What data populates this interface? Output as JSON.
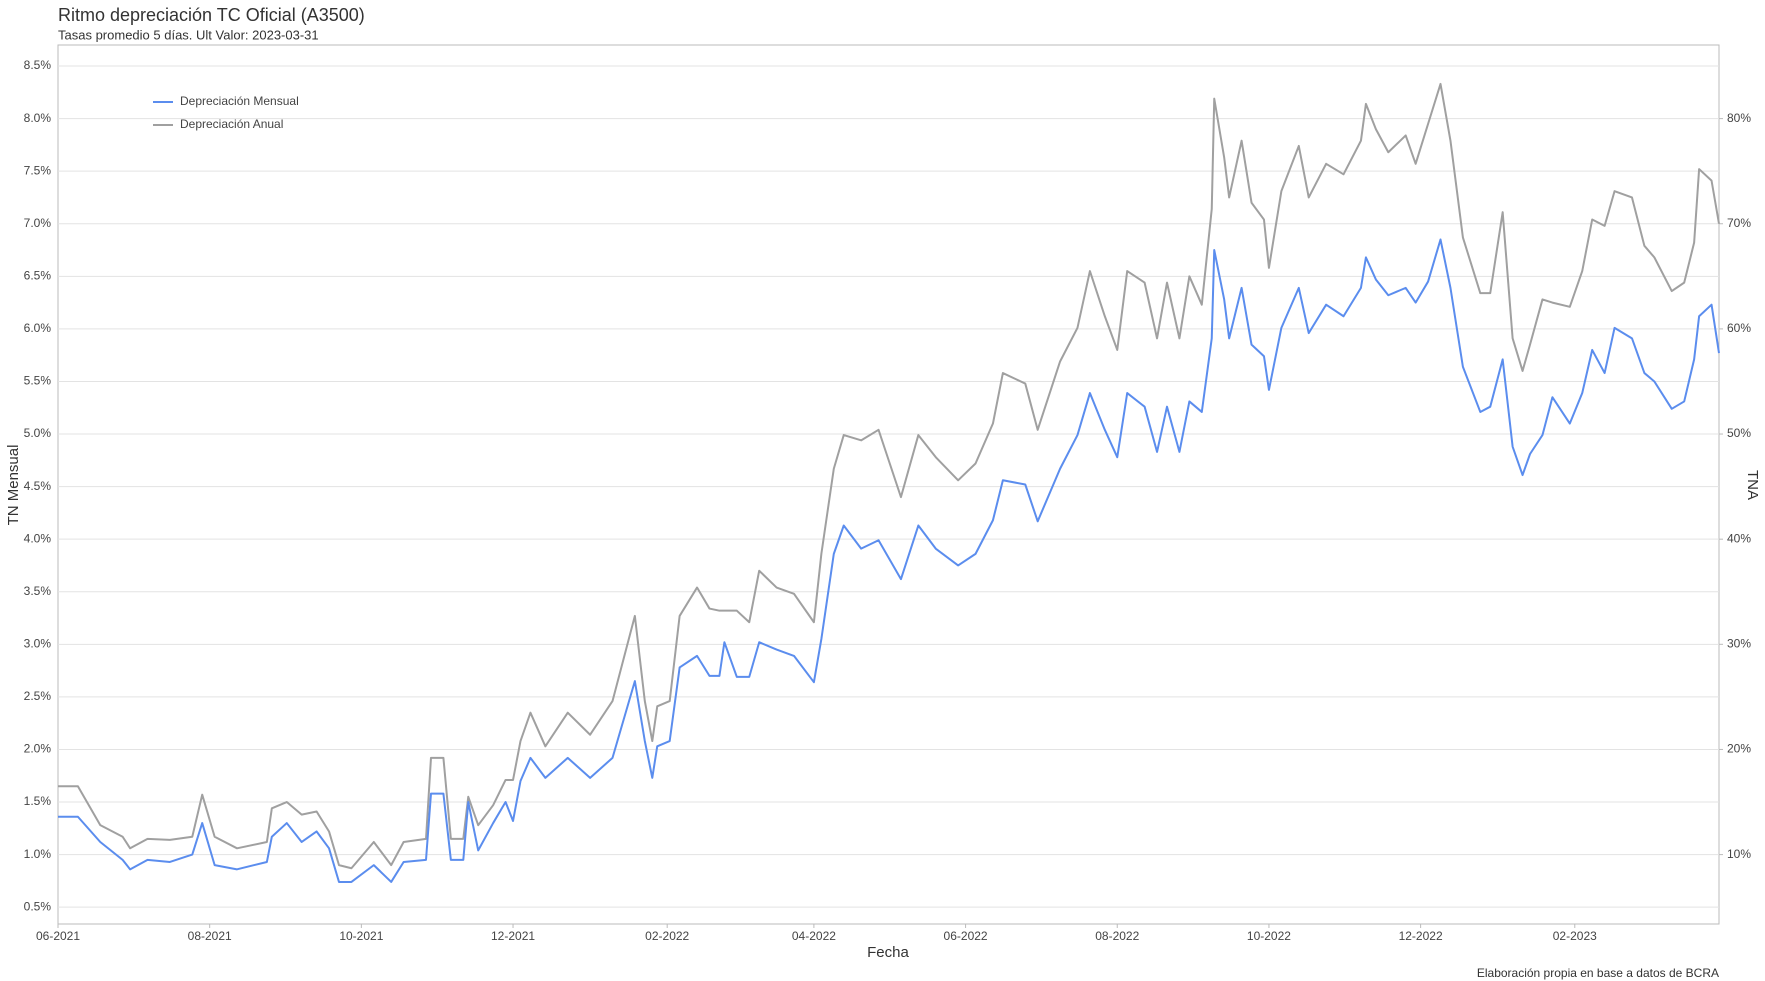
{
  "chart_data": {
    "type": "line",
    "title": "Ritmo depreciación TC Oficial (A3500)",
    "subtitle": "Tasas promedio 5 días. Ult Valor: 2023-03-31",
    "x_label": "Fecha",
    "y_label": "TN Mensual",
    "y2_label": "TNA",
    "caption": "Elaboración propia en base a datos de BCRA",
    "legend": "top-left",
    "grid": true,
    "xlim": [
      "2021-06-01",
      "2023-03-31"
    ],
    "xticks": [
      {
        "value": "2021-06-01",
        "label": "06-2021"
      },
      {
        "value": "2021-08-01",
        "label": "08-2021"
      },
      {
        "value": "2021-10-01",
        "label": "10-2021"
      },
      {
        "value": "2021-12-01",
        "label": "12-2021"
      },
      {
        "value": "2022-02-01",
        "label": "02-2022"
      },
      {
        "value": "2022-04-01",
        "label": "04-2022"
      },
      {
        "value": "2022-06-01",
        "label": "06-2022"
      },
      {
        "value": "2022-08-01",
        "label": "08-2022"
      },
      {
        "value": "2022-10-01",
        "label": "10-2022"
      },
      {
        "value": "2022-12-01",
        "label": "12-2022"
      },
      {
        "value": "2023-02-01",
        "label": "02-2023"
      }
    ],
    "ylim": [
      0.34,
      8.7
    ],
    "yticks": [
      {
        "value": 0.5,
        "label": "0.5%"
      },
      {
        "value": 1,
        "label": "1.0%"
      },
      {
        "value": 1.5,
        "label": "1.5%"
      },
      {
        "value": 2,
        "label": "2.0%"
      },
      {
        "value": 2.5,
        "label": "2.5%"
      },
      {
        "value": 3,
        "label": "3.0%"
      },
      {
        "value": 3.5,
        "label": "3.5%"
      },
      {
        "value": 4,
        "label": "4.0%"
      },
      {
        "value": 4.5,
        "label": "4.5%"
      },
      {
        "value": 5,
        "label": "5.0%"
      },
      {
        "value": 5.5,
        "label": "5.5%"
      },
      {
        "value": 6,
        "label": "6.0%"
      },
      {
        "value": 6.5,
        "label": "6.5%"
      },
      {
        "value": 7,
        "label": "7.0%"
      },
      {
        "value": 7.5,
        "label": "7.5%"
      },
      {
        "value": 8,
        "label": "8.0%"
      },
      {
        "value": 8.5,
        "label": "8.5%"
      }
    ],
    "y2lim": [
      3.4,
      87
    ],
    "y2ticks": [
      {
        "value": 10,
        "label": "10%"
      },
      {
        "value": 20,
        "label": "20%"
      },
      {
        "value": 30,
        "label": "30%"
      },
      {
        "value": 40,
        "label": "40%"
      },
      {
        "value": 50,
        "label": "50%"
      },
      {
        "value": 60,
        "label": "60%"
      },
      {
        "value": 70,
        "label": "70%"
      },
      {
        "value": 80,
        "label": "80%"
      }
    ],
    "x": [
      "2021-06-01",
      "2021-06-09",
      "2021-06-18",
      "2021-06-27",
      "2021-06-30",
      "2021-07-07",
      "2021-07-16",
      "2021-07-25",
      "2021-07-29",
      "2021-08-03",
      "2021-08-12",
      "2021-08-24",
      "2021-08-26",
      "2021-09-01",
      "2021-09-07",
      "2021-09-13",
      "2021-09-18",
      "2021-09-22",
      "2021-09-27",
      "2021-10-06",
      "2021-10-13",
      "2021-10-18",
      "2021-10-27",
      "2021-10-29",
      "2021-11-03",
      "2021-11-06",
      "2021-11-11",
      "2021-11-13",
      "2021-11-17",
      "2021-11-23",
      "2021-11-28",
      "2021-12-01",
      "2021-12-04",
      "2021-12-08",
      "2021-12-14",
      "2021-12-23",
      "2022-01-01",
      "2022-01-10",
      "2022-01-19",
      "2022-01-23",
      "2022-01-26",
      "2022-01-28",
      "2022-02-02",
      "2022-02-06",
      "2022-02-13",
      "2022-02-18",
      "2022-02-22",
      "2022-02-24",
      "2022-03-01",
      "2022-03-06",
      "2022-03-10",
      "2022-03-17",
      "2022-03-24",
      "2022-04-01",
      "2022-04-04",
      "2022-04-09",
      "2022-04-13",
      "2022-04-20",
      "2022-04-27",
      "2022-05-06",
      "2022-05-13",
      "2022-05-20",
      "2022-05-29",
      "2022-06-05",
      "2022-06-12",
      "2022-06-16",
      "2022-06-25",
      "2022-06-30",
      "2022-07-09",
      "2022-07-16",
      "2022-07-21",
      "2022-07-27",
      "2022-08-01",
      "2022-08-05",
      "2022-08-12",
      "2022-08-17",
      "2022-08-21",
      "2022-08-26",
      "2022-08-30",
      "2022-09-04",
      "2022-09-08",
      "2022-09-09",
      "2022-09-13",
      "2022-09-15",
      "2022-09-20",
      "2022-09-24",
      "2022-09-29",
      "2022-10-01",
      "2022-10-06",
      "2022-10-13",
      "2022-10-17",
      "2022-10-24",
      "2022-10-31",
      "2022-11-07",
      "2022-11-09",
      "2022-11-13",
      "2022-11-18",
      "2022-11-25",
      "2022-11-29",
      "2022-12-04",
      "2022-12-09",
      "2022-12-13",
      "2022-12-18",
      "2022-12-25",
      "2022-12-29",
      "2023-01-03",
      "2023-01-07",
      "2023-01-11",
      "2023-01-14",
      "2023-01-19",
      "2023-01-23",
      "2023-01-30",
      "2023-02-04",
      "2023-02-08",
      "2023-02-13",
      "2023-02-17",
      "2023-02-24",
      "2023-03-01",
      "2023-03-05",
      "2023-03-12",
      "2023-03-17",
      "2023-03-21",
      "2023-03-23",
      "2023-03-28",
      "2023-03-31"
    ],
    "series": [
      {
        "name": "Depreciación Mensual",
        "color": "#5b8dee",
        "values": [
          1.36,
          1.36,
          1.12,
          0.95,
          0.86,
          0.95,
          0.93,
          1.0,
          1.3,
          0.9,
          0.86,
          0.93,
          1.17,
          1.3,
          1.12,
          1.22,
          1.06,
          0.74,
          0.74,
          0.9,
          0.74,
          0.93,
          0.95,
          1.58,
          1.58,
          0.95,
          0.95,
          1.5,
          1.04,
          1.3,
          1.5,
          1.32,
          1.7,
          1.92,
          1.73,
          1.92,
          1.73,
          1.92,
          2.65,
          2.08,
          1.73,
          2.03,
          2.08,
          2.78,
          2.89,
          2.7,
          2.7,
          3.02,
          2.69,
          2.69,
          3.02,
          2.95,
          2.89,
          2.64,
          3.05,
          3.86,
          4.13,
          3.91,
          3.99,
          3.62,
          4.13,
          3.91,
          3.75,
          3.86,
          4.18,
          4.56,
          4.52,
          4.17,
          4.67,
          4.99,
          5.39,
          5.04,
          4.78,
          5.39,
          5.26,
          4.83,
          5.26,
          4.83,
          5.31,
          5.21,
          5.91,
          6.75,
          6.28,
          5.91,
          6.39,
          5.85,
          5.74,
          5.42,
          6.01,
          6.39,
          5.96,
          6.23,
          6.12,
          6.39,
          6.68,
          6.47,
          6.32,
          6.39,
          6.25,
          6.45,
          6.85,
          6.39,
          5.64,
          5.21,
          5.26,
          5.71,
          4.88,
          4.61,
          4.81,
          4.99,
          5.35,
          5.1,
          5.39,
          5.8,
          5.58,
          6.01,
          5.91,
          5.58,
          5.5,
          5.24,
          5.31,
          5.71,
          6.12,
          6.23,
          5.77
        ]
      },
      {
        "name": "Depreciación Anual",
        "color": "#a0a0a0",
        "axis": "y2",
        "values": [
          16.5,
          16.5,
          12.8,
          11.7,
          10.6,
          11.5,
          11.4,
          11.7,
          15.7,
          11.7,
          10.6,
          11.2,
          14.4,
          15.0,
          13.8,
          14.1,
          12.2,
          9.0,
          8.7,
          11.2,
          9.0,
          11.2,
          11.5,
          19.2,
          19.2,
          11.5,
          11.5,
          15.5,
          12.8,
          14.7,
          17.1,
          17.1,
          20.8,
          23.5,
          20.3,
          23.5,
          21.4,
          24.6,
          32.7,
          24.6,
          20.8,
          24.1,
          24.6,
          32.7,
          35.4,
          33.4,
          33.2,
          33.2,
          33.2,
          32.1,
          37.0,
          35.4,
          34.8,
          32.1,
          38.6,
          46.7,
          49.9,
          49.4,
          50.4,
          44.0,
          49.9,
          47.8,
          45.6,
          47.2,
          51.0,
          55.8,
          54.8,
          50.4,
          56.9,
          60.1,
          65.5,
          61.2,
          58.0,
          65.5,
          64.4,
          59.1,
          64.4,
          59.1,
          65.0,
          62.3,
          71.4,
          81.9,
          76.3,
          72.5,
          77.9,
          72.0,
          70.4,
          65.8,
          73.1,
          77.4,
          72.5,
          75.7,
          74.7,
          77.9,
          81.4,
          79.0,
          76.8,
          78.4,
          75.7,
          79.5,
          83.3,
          77.9,
          68.7,
          63.4,
          63.4,
          71.1,
          59.1,
          56.0,
          58.5,
          62.8,
          62.5,
          62.1,
          65.5,
          70.4,
          69.8,
          73.1,
          72.5,
          67.9,
          66.8,
          63.6,
          64.4,
          68.2,
          75.2,
          74.1,
          70.0
        ]
      }
    ]
  }
}
